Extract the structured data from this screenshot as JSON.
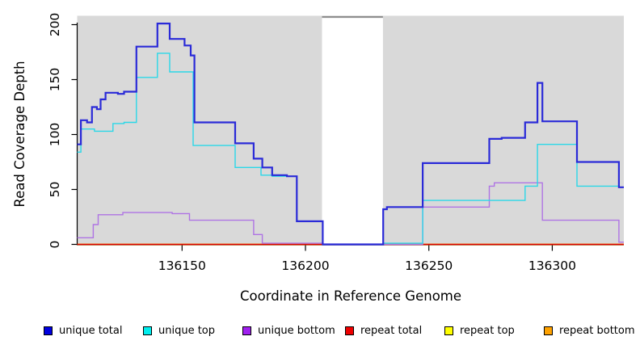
{
  "figure": {
    "x_axis_title": "Coordinate in Reference Genome",
    "y_axis_title": "Read Coverage Depth"
  },
  "chart_data": {
    "type": "line",
    "subtype": "step-coverage-depth",
    "title": "",
    "xlabel": "Coordinate in Reference Genome",
    "ylabel": "Read Coverage Depth",
    "xlim": [
      136107.5,
      136329
    ],
    "ylim": [
      0,
      207
    ],
    "xticks": [
      136150,
      136200,
      136250,
      136300
    ],
    "yticks": [
      0,
      50,
      100,
      150,
      200
    ],
    "grid": false,
    "legend_position": "bottom",
    "plot_background": "#ffffff",
    "covered_region_color": "#d9d9d9",
    "covered_regions": [
      {
        "x0": 136107.5,
        "x1": 136206.7
      },
      {
        "x0": 136231.4,
        "x1": 136329
      }
    ],
    "zero_coverage_gap": {
      "x0": 136206.7,
      "x1": 136231.4,
      "cap_value": 207,
      "cap_color": "#8e8e8e"
    },
    "series": [
      {
        "name": "unique total",
        "line_color": "#2a2ad8",
        "swatch_color": "#0000e0",
        "line_width": 2.2,
        "steps": [
          [
            136107.5,
            91
          ],
          [
            136109,
            113
          ],
          [
            136111.5,
            111
          ],
          [
            136113.5,
            125
          ],
          [
            136115.5,
            123
          ],
          [
            136117,
            132
          ],
          [
            136119,
            138
          ],
          [
            136124,
            137
          ],
          [
            136126.5,
            139
          ],
          [
            136131.5,
            180
          ],
          [
            136140,
            201
          ],
          [
            136145,
            187
          ],
          [
            136151,
            181
          ],
          [
            136153.5,
            172
          ],
          [
            136155,
            111
          ],
          [
            136171.5,
            92
          ],
          [
            136179,
            78
          ],
          [
            136182.5,
            70
          ],
          [
            136186.5,
            63
          ],
          [
            136192.5,
            62
          ],
          [
            136196.5,
            21
          ],
          [
            136207,
            0
          ],
          [
            136231.5,
            32
          ],
          [
            136233,
            34
          ],
          [
            136247.5,
            74
          ],
          [
            136274.5,
            96
          ],
          [
            136279.5,
            97
          ],
          [
            136289,
            111
          ],
          [
            136294,
            147
          ],
          [
            136296,
            112
          ],
          [
            136310,
            75
          ],
          [
            136327,
            52
          ]
        ]
      },
      {
        "name": "unique top",
        "line_color": "#2ad8e8",
        "swatch_color": "#00eeee",
        "line_width": 1.4,
        "steps": [
          [
            136107.5,
            84
          ],
          [
            136109,
            105
          ],
          [
            136114.5,
            103
          ],
          [
            136122,
            110
          ],
          [
            136126.5,
            111
          ],
          [
            136131.5,
            152
          ],
          [
            136140,
            174
          ],
          [
            136145,
            157
          ],
          [
            136154.5,
            90
          ],
          [
            136171.5,
            70
          ],
          [
            136182,
            63
          ],
          [
            136186.5,
            62
          ],
          [
            136196.5,
            21
          ],
          [
            136207,
            0
          ],
          [
            136231.5,
            1
          ],
          [
            136247.5,
            40
          ],
          [
            136289,
            53
          ],
          [
            136294,
            91
          ],
          [
            136310,
            53
          ],
          [
            136327,
            52
          ]
        ]
      },
      {
        "name": "unique bottom",
        "line_color": "#af74e4",
        "swatch_color": "#a020f0",
        "line_width": 1.4,
        "steps": [
          [
            136107.5,
            6
          ],
          [
            136114,
            18
          ],
          [
            136116,
            27
          ],
          [
            136126,
            29
          ],
          [
            136146,
            28
          ],
          [
            136153,
            22
          ],
          [
            136179,
            9
          ],
          [
            136182.5,
            1
          ],
          [
            136207,
            0
          ],
          [
            136247.5,
            34
          ],
          [
            136274.5,
            53
          ],
          [
            136276.5,
            56
          ],
          [
            136296,
            22
          ],
          [
            136327,
            2
          ]
        ]
      },
      {
        "name": "repeat total",
        "line_color": "#e00000",
        "swatch_color": "#ee0000",
        "line_width": 1.4,
        "steps": [
          [
            136107.5,
            0
          ]
        ]
      },
      {
        "name": "repeat top",
        "line_color": "#f2f200",
        "swatch_color": "#ffff00",
        "line_width": 1.4,
        "steps": [
          [
            136107.5,
            0
          ]
        ]
      },
      {
        "name": "repeat bottom",
        "line_color": "#ff9708",
        "swatch_color": "#ffa200",
        "line_width": 1.7,
        "steps": [
          [
            136107.5,
            0
          ]
        ]
      }
    ]
  },
  "legend": {
    "items": [
      {
        "label": "unique total",
        "color": "#0000e0"
      },
      {
        "label": "unique top",
        "color": "#00eeee"
      },
      {
        "label": "unique bottom",
        "color": "#a020f0"
      },
      {
        "label": "repeat total",
        "color": "#ee0000"
      },
      {
        "label": "repeat top",
        "color": "#ffff00"
      },
      {
        "label": "repeat bottom",
        "color": "#ffa200"
      }
    ]
  }
}
